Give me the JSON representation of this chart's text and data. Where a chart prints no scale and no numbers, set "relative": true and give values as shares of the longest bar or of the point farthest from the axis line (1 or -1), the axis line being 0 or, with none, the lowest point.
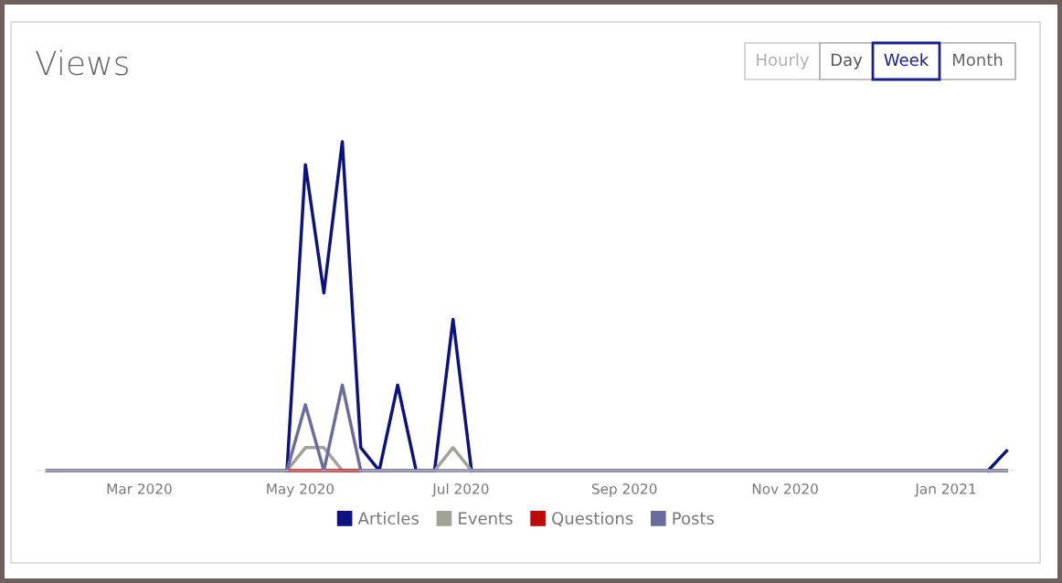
{
  "chart_data": {
    "type": "line",
    "title": "Views",
    "relative": true,
    "annotations": [
      "Hourly",
      "Day",
      "Week",
      "Month"
    ],
    "x": [
      "2020-01-26",
      "2020-02-02",
      "2020-02-09",
      "2020-02-16",
      "2020-02-23",
      "2020-03-01",
      "2020-03-08",
      "2020-03-15",
      "2020-03-22",
      "2020-03-29",
      "2020-04-05",
      "2020-04-12",
      "2020-04-19",
      "2020-04-26",
      "2020-05-03",
      "2020-05-10",
      "2020-05-17",
      "2020-05-24",
      "2020-05-31",
      "2020-06-07",
      "2020-06-14",
      "2020-06-21",
      "2020-06-28",
      "2020-07-05",
      "2020-07-12",
      "2020-07-19",
      "2020-07-26",
      "2020-08-02",
      "2020-08-09",
      "2020-08-16",
      "2020-08-23",
      "2020-08-30",
      "2020-09-06",
      "2020-09-13",
      "2020-09-20",
      "2020-09-27",
      "2020-10-04",
      "2020-10-11",
      "2020-10-18",
      "2020-10-25",
      "2020-11-01",
      "2020-11-08",
      "2020-11-15",
      "2020-11-22",
      "2020-11-29",
      "2020-12-06",
      "2020-12-13",
      "2020-12-20",
      "2020-12-27",
      "2021-01-03",
      "2021-01-10",
      "2021-01-17",
      "2021-01-24"
    ],
    "xlim": [
      "2020-01-22",
      "2021-01-27"
    ],
    "xticks": [
      {
        "value": "2020-03-01",
        "label": "Mar 2020"
      },
      {
        "value": "2020-05-01",
        "label": "May 2020"
      },
      {
        "value": "2020-07-01",
        "label": "Jul 2020"
      },
      {
        "value": "2020-09-01",
        "label": "Sep 2020"
      },
      {
        "value": "2020-11-01",
        "label": "Nov 2020"
      },
      {
        "value": "2021-01-01",
        "label": "Jan 2021"
      }
    ],
    "series": [
      {
        "name": "Articles",
        "color": "#0d1282",
        "values": [
          null,
          null,
          null,
          null,
          null,
          null,
          null,
          null,
          null,
          null,
          null,
          null,
          null,
          0,
          0.93,
          0.54,
          1,
          0.07,
          0,
          0.26,
          0,
          0,
          0.46,
          0,
          null,
          null,
          null,
          null,
          null,
          null,
          null,
          null,
          null,
          null,
          null,
          null,
          null,
          null,
          null,
          null,
          null,
          null,
          null,
          null,
          null,
          null,
          null,
          null,
          null,
          null,
          null,
          0,
          0.06
        ]
      },
      {
        "name": "Events",
        "color": "#a2a397",
        "values": [
          0,
          0,
          0,
          0,
          0,
          0,
          0,
          0,
          0,
          0,
          0,
          0,
          0,
          0,
          0.07,
          0.07,
          0,
          0,
          0,
          0,
          0,
          0,
          0.07,
          0,
          0,
          0,
          0,
          0,
          0,
          0,
          0,
          0,
          0,
          0,
          0,
          0,
          0,
          0,
          0,
          0,
          0,
          0,
          0,
          0,
          0,
          0,
          0,
          0,
          0,
          0,
          0,
          0,
          0
        ]
      },
      {
        "name": "Questions",
        "color": "#c00a0a",
        "values": [
          null,
          null,
          null,
          null,
          null,
          null,
          null,
          null,
          null,
          null,
          null,
          null,
          null,
          0,
          0,
          0,
          0,
          0,
          null,
          null,
          null,
          null,
          null,
          null,
          null,
          null,
          null,
          null,
          null,
          null,
          null,
          null,
          null,
          null,
          null,
          null,
          null,
          null,
          null,
          null,
          null,
          null,
          null,
          null,
          null,
          null,
          null,
          null,
          null,
          null,
          null,
          null,
          null
        ]
      },
      {
        "name": "Posts",
        "color": "#6b6b9e",
        "values": [
          0,
          0,
          0,
          0,
          0,
          0,
          0,
          0,
          0,
          0,
          0,
          0,
          0,
          0,
          0.2,
          0,
          0.26,
          0,
          0,
          0,
          0,
          0,
          0,
          0,
          0,
          0,
          0,
          0,
          0,
          0,
          0,
          0,
          0,
          0,
          0,
          0,
          0,
          0,
          0,
          0,
          0,
          0,
          0,
          0,
          0,
          0,
          0,
          0,
          0,
          0,
          0,
          0,
          0
        ]
      }
    ],
    "legend": "bottom",
    "grid": false,
    "marker": "none",
    "line_style": "solid"
  }
}
